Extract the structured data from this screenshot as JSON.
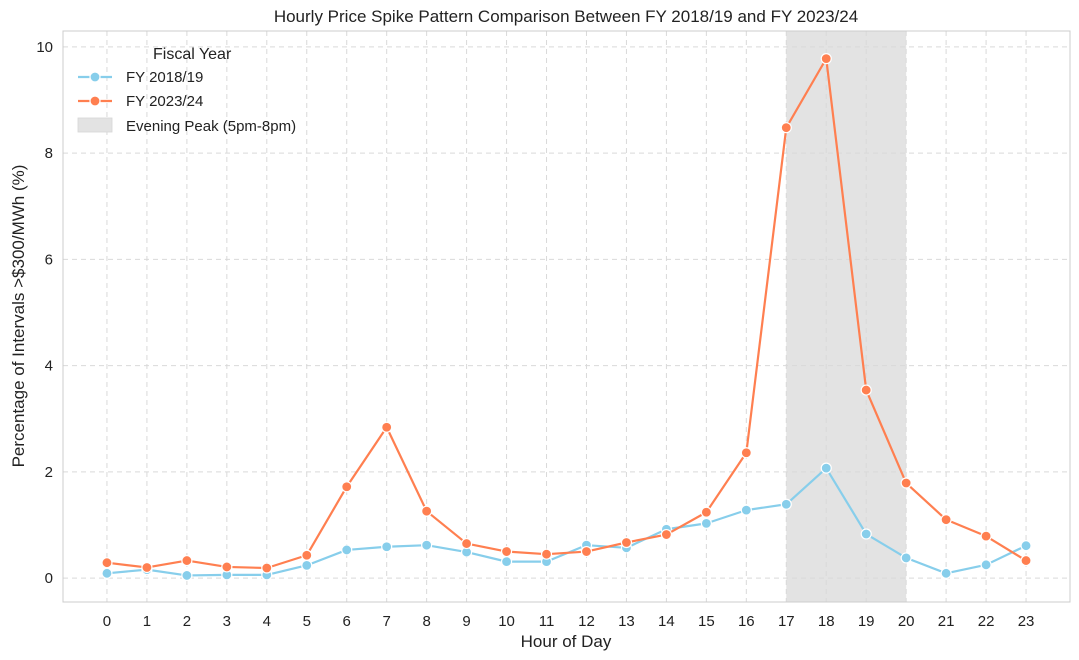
{
  "chart_data": {
    "type": "line",
    "title": "Hourly Price Spike Pattern Comparison Between FY 2018/19 and FY 2023/24",
    "xlabel": "Hour of Day",
    "ylabel": "Percentage of Intervals >$300/MWh (%)",
    "x": [
      0,
      1,
      2,
      3,
      4,
      5,
      6,
      7,
      8,
      9,
      10,
      11,
      12,
      13,
      14,
      15,
      16,
      17,
      18,
      19,
      20,
      21,
      22,
      23
    ],
    "xticks": [
      "0",
      "1",
      "2",
      "3",
      "4",
      "5",
      "6",
      "7",
      "8",
      "9",
      "10",
      "11",
      "12",
      "13",
      "14",
      "15",
      "16",
      "17",
      "18",
      "19",
      "20",
      "21",
      "22",
      "23"
    ],
    "yticks": [
      "0",
      "2",
      "4",
      "6",
      "8",
      "10"
    ],
    "xlim": [
      -1.1,
      24.1
    ],
    "ylim": [
      -0.45,
      10.3
    ],
    "grid": true,
    "legend": {
      "title": "Fiscal Year",
      "placement": "top-left"
    },
    "series": [
      {
        "name": "FY 2018/19",
        "color": "#87ceeb",
        "values": [
          0.09,
          0.16,
          0.05,
          0.06,
          0.06,
          0.24,
          0.53,
          0.59,
          0.62,
          0.49,
          0.31,
          0.31,
          0.62,
          0.57,
          0.92,
          1.03,
          1.28,
          1.39,
          2.07,
          0.83,
          0.38,
          0.09,
          0.25,
          0.61
        ]
      },
      {
        "name": "FY 2023/24",
        "color": "#ff7f50",
        "values": [
          0.29,
          0.2,
          0.33,
          0.21,
          0.19,
          0.43,
          1.72,
          2.84,
          1.26,
          0.65,
          0.5,
          0.45,
          0.5,
          0.67,
          0.82,
          1.24,
          2.36,
          8.48,
          9.78,
          3.54,
          1.79,
          1.1,
          0.79,
          0.33
        ]
      }
    ],
    "shaded_region": {
      "label": "Evening Peak (5pm-8pm)",
      "x_start": 17,
      "x_end": 20,
      "color": "#e3e3e3"
    }
  }
}
